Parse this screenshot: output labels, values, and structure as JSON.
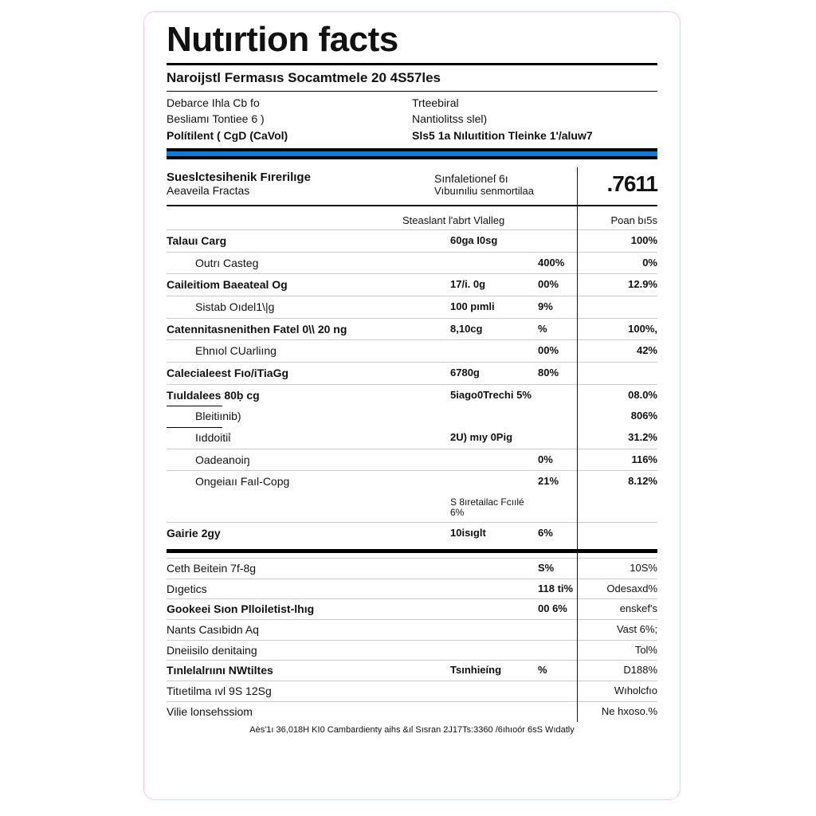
{
  "colors": {
    "text": "#111111",
    "background": "#ffffff",
    "panel_border": "#f5c9e6",
    "bluebar": "#1279d6",
    "rule_light": "#cccccc"
  },
  "typography": {
    "title_fontsize_pt": 44,
    "title_weight": 800,
    "body_fontsize_pt": 14,
    "big_number_fontsize_pt": 28
  },
  "header": {
    "title": "Nutırtion facts",
    "subtitle": "Naroĳstl Fermasıs Socamtmele 20 4S57les"
  },
  "meta": {
    "left": [
      {
        "label": "Debarce Ihla Cb fo",
        "bold": false
      },
      {
        "label": "Besliamı Tontiee 6 )",
        "bold": false
      },
      {
        "label": "Polítilent ( CgD (CaVol)",
        "bold": true
      }
    ],
    "right": [
      {
        "label": "Trteebiral",
        "bold": false
      },
      {
        "label": "Nantiolitss slel)",
        "bold": false
      },
      {
        "label": "Sls5 1a Nıluıtition Tleinke 1'/aluw7",
        "bold": true
      }
    ]
  },
  "section_header": {
    "left_line1": "Sueslctesihenik Fırerilıge",
    "left_line2": "Aeaveila Fractas",
    "mid_line1": "Sınfaletioneſ 6ı",
    "mid_line2": "Vıbuınıliu senmortilaa",
    "big_number": ".7611"
  },
  "column_header": {
    "c2": "Steaslant l'abrt Vlalleg",
    "c4": "Poan bı5s"
  },
  "rows": [
    {
      "name": "Talauı Carg",
      "bold": true,
      "indent": false,
      "amt": "60ga I0sg",
      "pct": "",
      "dv": "100%"
    },
    {
      "name": "Outrı Casteg",
      "bold": false,
      "indent": true,
      "amt": "",
      "pct": "400%",
      "dv": "0%"
    },
    {
      "name": "Caileitiom Baeateal Og",
      "bold": true,
      "indent": false,
      "amt": "17/i. 0g",
      "pct": "00%",
      "dv": "12.9%"
    },
    {
      "name": "Sistab Oıdel1\\|g",
      "bold": false,
      "indent": true,
      "amt": "100 pımli",
      "pct": "9%",
      "dv": ""
    },
    {
      "name": "Catennitasnenithen Fatel 0\\\\ 20 ng",
      "bold": true,
      "indent": false,
      "amt": "8,10cg",
      "pct": "%",
      "dv": "100%, "
    },
    {
      "name": "Ehnıol CUarliıng",
      "bold": false,
      "indent": true,
      "amt": "",
      "pct": "00%",
      "dv": "42%"
    },
    {
      "name": "Calecialeest Fıo/iTiaGg",
      "bold": true,
      "indent": false,
      "amt": "6780g",
      "pct": "80%",
      "dv": ""
    },
    {
      "name": "Tıuldalees 80ḅ cg",
      "bold": true,
      "indent": false,
      "amt": "5iago0Trechi 5%",
      "pct": "",
      "dv": "08.0%"
    },
    {
      "name": "Bleitiınib)",
      "bold": false,
      "indent": true,
      "amt": "",
      "pct": "",
      "dv": "806%",
      "short": true
    },
    {
      "name": "Iıddoitiỉ",
      "bold": false,
      "indent": true,
      "amt": "2U) mıy 0Pig",
      "pct": "",
      "dv": "31.2%",
      "short": true
    },
    {
      "name": "Oadeanoiŋ",
      "bold": false,
      "indent": true,
      "amt": "",
      "pct": "0%",
      "dv": "116%"
    },
    {
      "name": "Ongeiaıı Faıl-Copg",
      "bold": false,
      "indent": true,
      "amt": "",
      "pct": "21%",
      "dv": "8.12%"
    },
    {
      "name": "",
      "bold": false,
      "indent": true,
      "amt": "S 8ıretailac Fcıılé 6%",
      "pct": "",
      "dv": "",
      "noborder": true,
      "small": true
    },
    {
      "name": "Gairie 2gy",
      "bold": true,
      "indent": false,
      "amt": "10isıglt",
      "pct": "6%",
      "dv": ""
    }
  ],
  "section2_rows": [
    {
      "name": "Ceth Beitein 7f-8g",
      "bold": false,
      "amt": "",
      "pct": "S%",
      "dv": "10S%"
    },
    {
      "name": "Dıgetics",
      "bold": false,
      "amt": "",
      "pct": "118 ti%",
      "dv": "Odesaxd%"
    },
    {
      "name": "Gookeei Sıon Plloiletist-lhıg",
      "bold": true,
      "amt": "",
      "pct": "00 6%",
      "dv": "enskef's"
    },
    {
      "name": "Nants Casıbidn Aq",
      "bold": false,
      "amt": "",
      "pct": "",
      "dv": "Vast 6%;"
    },
    {
      "name": "Dneiisilo denitaing",
      "bold": false,
      "amt": "",
      "pct": "",
      "dv": "Tol%"
    },
    {
      "name": "Tınlelalrıını NWtiltes",
      "bold": true,
      "amt": "Tsınhieíng",
      "pct": "%",
      "dv": "D188%"
    },
    {
      "name": "Titıetilma ıvl 9S    12Sg",
      "bold": false,
      "amt": "",
      "pct": "",
      "dv": "Wıholcfıo"
    },
    {
      "name": "Vilie lonsehssiom",
      "bold": false,
      "amt": "",
      "pct": "",
      "dv": "Ne hxoso.%"
    }
  ],
  "footnote": "Aès'1ı 36,018H KI0 Cambardienty aihs &ıl Sısran 2J17Ts:3360 /6ıhıoór 6sS       Wıdatly"
}
